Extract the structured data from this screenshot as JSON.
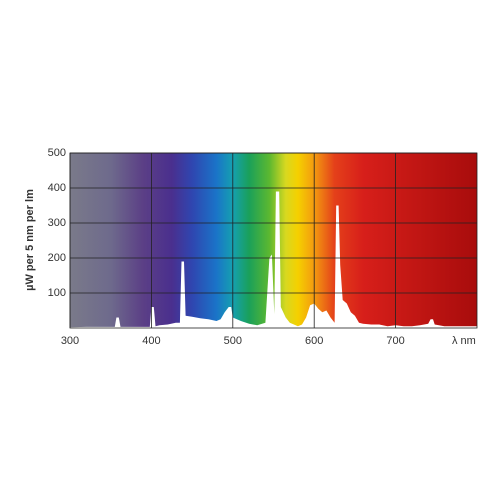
{
  "chart_data": {
    "type": "area",
    "y_label": "µW per 5 nm per lm",
    "x_label": "λ nm",
    "xlim": [
      300,
      800
    ],
    "ylim": [
      0,
      500
    ],
    "xticks": [
      300,
      400,
      500,
      600,
      700
    ],
    "yticks": [
      100,
      200,
      300,
      400,
      500
    ],
    "grid": true,
    "series": [
      {
        "color": "#ffffff",
        "x": [
          300,
          320,
          340,
          355,
          357,
          360,
          362,
          380,
          398,
          400,
          403,
          405,
          410,
          420,
          430,
          435,
          437,
          440,
          442,
          450,
          460,
          470,
          480,
          485,
          490,
          495,
          498,
          500,
          510,
          520,
          530,
          540,
          545,
          548,
          551,
          553,
          557,
          559,
          565,
          570,
          575,
          580,
          585,
          590,
          595,
          600,
          605,
          610,
          615,
          620,
          625,
          627,
          630,
          632,
          635,
          640,
          645,
          650,
          655,
          660,
          670,
          680,
          690,
          700,
          710,
          720,
          730,
          740,
          743,
          746,
          748,
          760,
          780,
          800
        ],
        "values": [
          2,
          3,
          3,
          3,
          30,
          30,
          3,
          3,
          3,
          60,
          60,
          5,
          8,
          10,
          15,
          15,
          190,
          190,
          35,
          32,
          28,
          25,
          20,
          25,
          45,
          60,
          60,
          30,
          20,
          12,
          8,
          15,
          200,
          210,
          40,
          390,
          390,
          60,
          30,
          15,
          10,
          5,
          10,
          30,
          65,
          70,
          55,
          45,
          50,
          30,
          15,
          350,
          350,
          180,
          80,
          70,
          45,
          35,
          15,
          12,
          10,
          10,
          5,
          8,
          5,
          5,
          8,
          12,
          25,
          25,
          10,
          5,
          5,
          5
        ]
      }
    ]
  }
}
